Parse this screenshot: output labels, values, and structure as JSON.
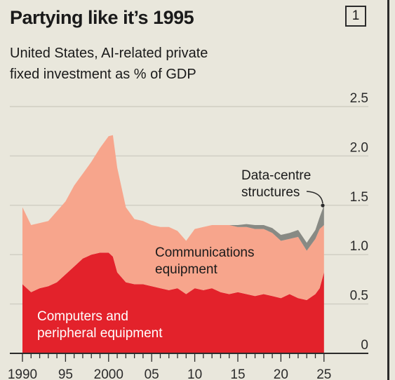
{
  "header": {
    "title": "Partying like it’s 1995",
    "chart_number": "1",
    "subtitle_line1": "United States, AI-related private",
    "subtitle_line2": "fixed investment as % of GDP"
  },
  "colors": {
    "background": "#e9e7dc",
    "computers": "#e3222b",
    "communications": "#f7a58c",
    "data_centres": "#888a84",
    "grid": "#cfcdc2",
    "axis": "#2b2b2b"
  },
  "chart_data": {
    "type": "area",
    "stacked": true,
    "title": "Partying like it’s 1995",
    "subtitle": "United States, AI-related private fixed investment as % of GDP",
    "xlabel": "",
    "ylabel": "",
    "xlim": [
      1990,
      2025.1
    ],
    "ylim": [
      0,
      2.5
    ],
    "y_ticks": [
      "0",
      "0.5",
      "1.0",
      "1.5",
      "2.0",
      "2.5"
    ],
    "y_tick_values": [
      0,
      0.5,
      1.0,
      1.5,
      2.0,
      2.5
    ],
    "x_tick_labels": [
      "1990",
      "95",
      "2000",
      "05",
      "10",
      "15",
      "20",
      "25"
    ],
    "x_tick_values": [
      1990,
      1995,
      2000,
      2005,
      2010,
      2015,
      2020,
      2025
    ],
    "grid": true,
    "y_axis_side": "right",
    "x": [
      1990,
      1991,
      1992,
      1993,
      1994,
      1995,
      1996,
      1997,
      1998,
      1999,
      2000,
      2000.5,
      2001,
      2002,
      2003,
      2004,
      2005,
      2006,
      2007,
      2008,
      2009,
      2010,
      2011,
      2012,
      2013,
      2014,
      2015,
      2016,
      2017,
      2018,
      2019,
      2020,
      2021,
      2022,
      2023,
      2024,
      2024.5,
      2025
    ],
    "series": [
      {
        "name": "Computers and peripheral equipment",
        "values": [
          0.7,
          0.62,
          0.66,
          0.68,
          0.72,
          0.8,
          0.88,
          0.96,
          1.0,
          1.02,
          1.02,
          0.98,
          0.82,
          0.72,
          0.7,
          0.7,
          0.68,
          0.66,
          0.64,
          0.66,
          0.6,
          0.66,
          0.64,
          0.66,
          0.62,
          0.6,
          0.62,
          0.6,
          0.58,
          0.6,
          0.58,
          0.56,
          0.6,
          0.56,
          0.54,
          0.6,
          0.66,
          0.82
        ]
      },
      {
        "name": "Communications equipment",
        "values": [
          0.78,
          0.68,
          0.66,
          0.66,
          0.72,
          0.74,
          0.82,
          0.86,
          0.94,
          1.06,
          1.18,
          1.23,
          1.06,
          0.76,
          0.66,
          0.64,
          0.62,
          0.62,
          0.64,
          0.58,
          0.54,
          0.6,
          0.64,
          0.64,
          0.68,
          0.7,
          0.66,
          0.68,
          0.68,
          0.66,
          0.64,
          0.58,
          0.56,
          0.62,
          0.5,
          0.56,
          0.6,
          0.48
        ]
      },
      {
        "name": "Data-centre structures",
        "values": [
          0,
          0,
          0,
          0,
          0,
          0,
          0,
          0,
          0,
          0,
          0,
          0,
          0,
          0,
          0,
          0,
          0,
          0,
          0,
          0,
          0,
          0,
          0,
          0,
          0,
          0,
          0.02,
          0.03,
          0.04,
          0.04,
          0.05,
          0.06,
          0.06,
          0.07,
          0.08,
          0.09,
          0.12,
          0.2
        ]
      }
    ],
    "annotations": {
      "data_centres_line1": "Data-centre",
      "data_centres_line2": "structures",
      "communications_line1": "Communications",
      "communications_line2": "equipment",
      "computers_line1": "Computers and",
      "computers_line2": "peripheral equipment"
    }
  }
}
